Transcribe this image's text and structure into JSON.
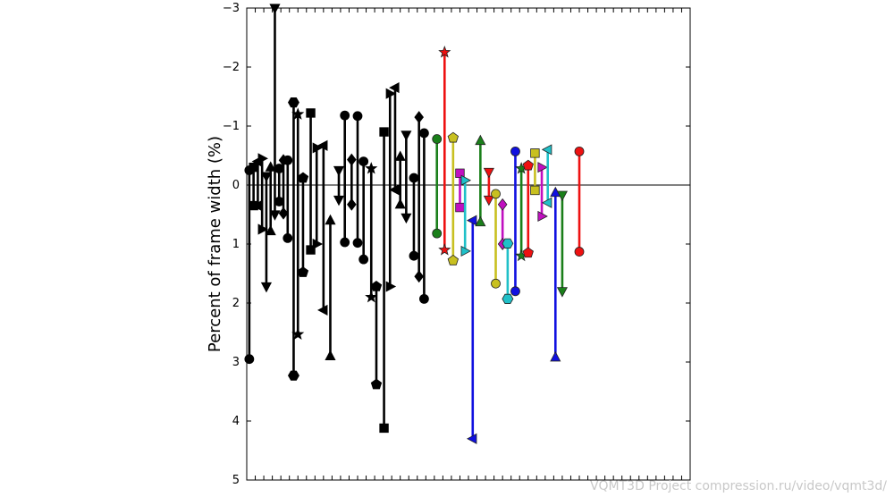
{
  "chart_data": {
    "type": "range",
    "title": "",
    "xlabel": "",
    "ylabel": "Percent of frame width (%)",
    "ylim": [
      -3,
      5
    ],
    "y_inverted": true,
    "yticks": [
      -3,
      -2,
      -1,
      0,
      1,
      2,
      3,
      4,
      5
    ],
    "ytick_labels": [
      "−3",
      "−2",
      "−1",
      "0",
      "1",
      "2",
      "3",
      "4",
      "5"
    ],
    "xlim": [
      0,
      52
    ],
    "grid": false,
    "baseline": 0,
    "ranges": [
      {
        "x": 0.3,
        "from": -0.25,
        "to": 2.95,
        "marker": "circle",
        "color": "#000000"
      },
      {
        "x": 0.8,
        "from": -0.3,
        "to": 0.35,
        "marker": "square",
        "color": "#000000"
      },
      {
        "x": 1.3,
        "from": -0.4,
        "to": 0.35,
        "marker": "triangle-left",
        "color": "#000000"
      },
      {
        "x": 1.8,
        "from": -0.45,
        "to": 0.75,
        "marker": "triangle-right",
        "color": "#000000"
      },
      {
        "x": 2.3,
        "from": -0.15,
        "to": 1.72,
        "marker": "triangle-down",
        "color": "#000000"
      },
      {
        "x": 2.8,
        "from": -0.3,
        "to": 0.78,
        "marker": "triangle-up",
        "color": "#000000"
      },
      {
        "x": 3.3,
        "from": -3.0,
        "to": 0.5,
        "marker": "triangle-down",
        "color": "#000000"
      },
      {
        "x": 3.8,
        "from": -0.28,
        "to": 0.28,
        "marker": "circle",
        "color": "#000000"
      },
      {
        "x": 4.3,
        "from": -0.42,
        "to": 0.48,
        "marker": "diamond",
        "color": "#000000"
      },
      {
        "x": 4.8,
        "from": -0.42,
        "to": 0.9,
        "marker": "circle",
        "color": "#000000"
      },
      {
        "x": 5.5,
        "from": -1.4,
        "to": 3.23,
        "marker": "hexagon",
        "color": "#000000"
      },
      {
        "x": 6.0,
        "from": -1.2,
        "to": 2.53,
        "marker": "star",
        "color": "#000000"
      },
      {
        "x": 6.6,
        "from": -0.12,
        "to": 1.48,
        "marker": "pentagon",
        "color": "#000000"
      },
      {
        "x": 7.5,
        "from": -1.22,
        "to": 1.1,
        "marker": "square",
        "color": "#000000"
      },
      {
        "x": 8.2,
        "from": -0.63,
        "to": 1.0,
        "marker": "triangle-right",
        "color": "#000000"
      },
      {
        "x": 9.0,
        "from": -0.67,
        "to": 2.12,
        "marker": "triangle-left",
        "color": "#000000"
      },
      {
        "x": 9.8,
        "from": 0.6,
        "to": 2.9,
        "marker": "triangle-up",
        "color": "#000000"
      },
      {
        "x": 10.8,
        "from": -0.25,
        "to": 0.25,
        "marker": "triangle-down",
        "color": "#000000"
      },
      {
        "x": 11.5,
        "from": -1.18,
        "to": 0.97,
        "marker": "circle",
        "color": "#000000"
      },
      {
        "x": 12.3,
        "from": -0.43,
        "to": 0.33,
        "marker": "diamond",
        "color": "#000000"
      },
      {
        "x": 13.0,
        "from": -1.17,
        "to": 0.98,
        "marker": "circle",
        "color": "#000000"
      },
      {
        "x": 13.7,
        "from": -0.4,
        "to": 1.26,
        "marker": "circle",
        "color": "#000000"
      },
      {
        "x": 14.6,
        "from": -0.28,
        "to": 1.9,
        "marker": "star",
        "color": "#000000"
      },
      {
        "x": 15.2,
        "from": 1.72,
        "to": 3.38,
        "marker": "pentagon",
        "color": "#000000"
      },
      {
        "x": 16.1,
        "from": -0.9,
        "to": 4.12,
        "marker": "square",
        "color": "#000000"
      },
      {
        "x": 16.8,
        "from": -1.55,
        "to": 1.72,
        "marker": "triangle-right",
        "color": "#000000"
      },
      {
        "x": 17.4,
        "from": -1.65,
        "to": 0.08,
        "marker": "triangle-left",
        "color": "#000000"
      },
      {
        "x": 18.0,
        "from": -0.48,
        "to": 0.33,
        "marker": "triangle-up",
        "color": "#000000"
      },
      {
        "x": 18.7,
        "from": -0.85,
        "to": 0.55,
        "marker": "triangle-down",
        "color": "#000000"
      },
      {
        "x": 19.6,
        "from": -0.12,
        "to": 1.2,
        "marker": "circle",
        "color": "#000000"
      },
      {
        "x": 20.2,
        "from": -1.15,
        "to": 1.55,
        "marker": "diamond",
        "color": "#000000"
      },
      {
        "x": 20.8,
        "from": -0.88,
        "to": 1.93,
        "marker": "circle",
        "color": "#000000"
      },
      {
        "x": 22.3,
        "from": -0.78,
        "to": 0.82,
        "marker": "circle",
        "color": "#1a7f1a"
      },
      {
        "x": 23.2,
        "from": -2.25,
        "to": 1.1,
        "marker": "star",
        "color": "#ee1111"
      },
      {
        "x": 24.2,
        "from": -0.8,
        "to": 1.28,
        "marker": "pentagon",
        "color": "#c8c020"
      },
      {
        "x": 25.0,
        "from": -0.2,
        "to": 0.38,
        "marker": "square",
        "color": "#c010c0"
      },
      {
        "x": 25.6,
        "from": -0.08,
        "to": 1.12,
        "marker": "triangle-right",
        "color": "#20c0c8"
      },
      {
        "x": 26.5,
        "from": 0.6,
        "to": 4.3,
        "marker": "triangle-left",
        "color": "#1010e0"
      },
      {
        "x": 27.4,
        "from": -0.75,
        "to": 0.63,
        "marker": "triangle-up",
        "color": "#1a7f1a"
      },
      {
        "x": 28.4,
        "from": -0.22,
        "to": 0.25,
        "marker": "triangle-down",
        "color": "#ee1111"
      },
      {
        "x": 29.2,
        "from": 0.15,
        "to": 1.67,
        "marker": "circle",
        "color": "#c8c020"
      },
      {
        "x": 30.0,
        "from": 0.33,
        "to": 1.0,
        "marker": "diamond",
        "color": "#c010c0"
      },
      {
        "x": 30.6,
        "from": 0.99,
        "to": 1.93,
        "marker": "hexagon",
        "color": "#20c0c8"
      },
      {
        "x": 31.5,
        "from": -0.57,
        "to": 1.8,
        "marker": "circle",
        "color": "#1010e0"
      },
      {
        "x": 32.2,
        "from": -0.28,
        "to": 1.2,
        "marker": "star",
        "color": "#1a7f1a"
      },
      {
        "x": 33.0,
        "from": -0.33,
        "to": 1.15,
        "marker": "pentagon",
        "color": "#ee1111"
      },
      {
        "x": 33.8,
        "from": -0.54,
        "to": 0.09,
        "marker": "square",
        "color": "#c8c020"
      },
      {
        "x": 34.6,
        "from": -0.3,
        "to": 0.53,
        "marker": "triangle-right",
        "color": "#c010c0"
      },
      {
        "x": 35.3,
        "from": -0.6,
        "to": 0.3,
        "marker": "triangle-left",
        "color": "#20c0c8"
      },
      {
        "x": 36.2,
        "from": 0.13,
        "to": 2.92,
        "marker": "triangle-up",
        "color": "#1010e0"
      },
      {
        "x": 37.0,
        "from": 0.17,
        "to": 1.8,
        "marker": "triangle-down",
        "color": "#1a7f1a"
      },
      {
        "x": 39.0,
        "from": -0.57,
        "to": 1.13,
        "marker": "circle",
        "color": "#ee1111"
      }
    ]
  },
  "footer": {
    "watermark": "VQMT3D Project compression.ru/video/vqmt3d/"
  }
}
